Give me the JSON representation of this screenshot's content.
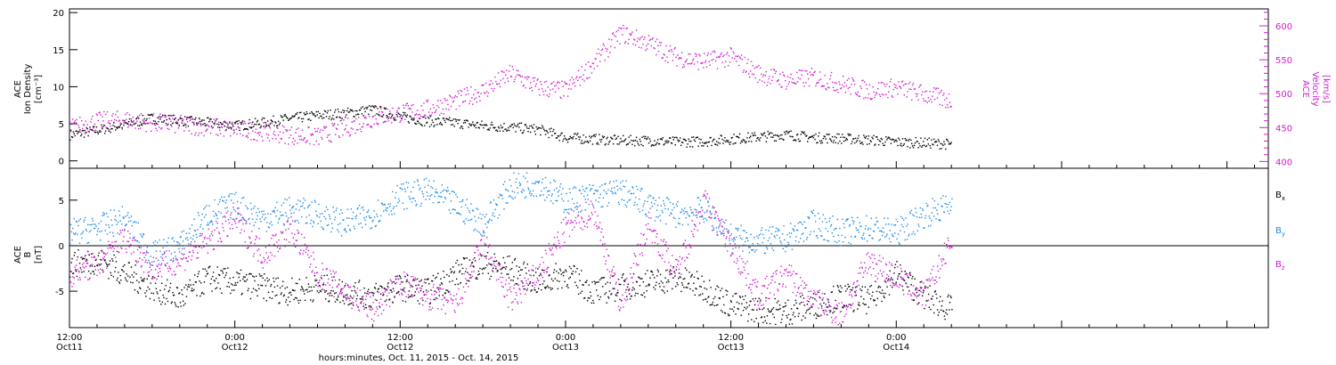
{
  "xaxis": {
    "label": "hours:minutes, Oct. 11, 2015 - Oct. 14, 2015",
    "ticks": [
      {
        "t": 0,
        "time": "12:00",
        "date": "Oct11"
      },
      {
        "t": 12,
        "time": "0:00",
        "date": "Oct12"
      },
      {
        "t": 24,
        "time": "12:00",
        "date": "Oct12"
      },
      {
        "t": 36,
        "time": "0:00",
        "date": "Oct13"
      },
      {
        "t": 48,
        "time": "12:00",
        "date": "Oct13"
      },
      {
        "t": 60,
        "time": "0:00",
        "date": "Oct14"
      }
    ]
  },
  "colors": {
    "black": "#000000",
    "magenta": "#d21bd2",
    "blue": "#1e8ae6"
  },
  "chart_data": [
    {
      "type": "scatter",
      "panel": "top",
      "ylabel_left": [
        "ACE",
        "Ion Density",
        "[cm⁻³]"
      ],
      "ylabel_right": [
        "ACE",
        "Velocity",
        "[km/s]"
      ],
      "ylim_left": [
        -1,
        20.5
      ],
      "yticks_left": [
        0,
        5,
        10,
        15,
        20
      ],
      "ylim_right": [
        390,
        625
      ],
      "yticks_right": [
        400,
        450,
        500,
        550,
        600
      ],
      "x_unit": "hours since Oct11 12:00",
      "series": [
        {
          "axis": "left",
          "color": "#000000",
          "x": [
            0,
            2,
            4,
            6,
            8,
            10,
            12,
            14,
            16,
            18,
            20,
            22,
            24,
            26,
            28,
            30,
            32,
            34,
            36,
            38,
            40,
            42,
            44,
            46,
            48,
            50,
            52,
            54,
            56,
            58,
            60,
            62,
            64
          ],
          "y": [
            3.6,
            4.2,
            5.0,
            5.8,
            5.5,
            5.2,
            4.8,
            5.2,
            5.8,
            6.2,
            6.5,
            7.0,
            6.0,
            5.4,
            5.2,
            4.8,
            4.6,
            4.3,
            3.2,
            3.0,
            2.8,
            2.8,
            2.6,
            2.7,
            3.0,
            3.3,
            3.6,
            3.2,
            3.1,
            2.9,
            2.6,
            2.5,
            2.3
          ]
        },
        {
          "axis": "right",
          "color": "#d21bd2",
          "x": [
            0,
            2,
            4,
            6,
            8,
            10,
            12,
            14,
            16,
            18,
            20,
            22,
            24,
            26,
            28,
            30,
            32,
            34,
            36,
            38,
            40,
            42,
            44,
            46,
            48,
            50,
            52,
            54,
            56,
            58,
            60,
            62,
            64
          ],
          "y": [
            450,
            460,
            462,
            458,
            455,
            452,
            448,
            445,
            440,
            437,
            450,
            465,
            472,
            478,
            490,
            505,
            530,
            510,
            505,
            545,
            590,
            575,
            555,
            548,
            555,
            530,
            520,
            525,
            515,
            505,
            510,
            500,
            490
          ]
        }
      ]
    },
    {
      "type": "scatter",
      "panel": "bottom",
      "ylabel_left": [
        "ACE",
        "B",
        "[nT]"
      ],
      "ylim": [
        -9,
        8.5
      ],
      "yticks": [
        -5,
        0,
        5
      ],
      "x_unit": "hours since Oct11 12:00",
      "legend": [
        {
          "name": "B",
          "sub": "x",
          "color": "#000000"
        },
        {
          "name": "B",
          "sub": "y",
          "color": "#1e8ae6"
        },
        {
          "name": "B",
          "sub": "z",
          "color": "#d21bd2"
        }
      ],
      "series": [
        {
          "name": "Bx",
          "color": "#000000",
          "x": [
            0,
            2,
            4,
            6,
            8,
            10,
            12,
            14,
            16,
            18,
            20,
            22,
            24,
            26,
            28,
            30,
            32,
            34,
            36,
            38,
            40,
            42,
            44,
            46,
            48,
            50,
            52,
            54,
            56,
            58,
            60,
            62,
            64
          ],
          "y": [
            -2.0,
            -1.5,
            -3.0,
            -4.5,
            -5.8,
            -3.5,
            -4.0,
            -4.5,
            -5.0,
            -4.5,
            -5.0,
            -5.5,
            -4.5,
            -5.0,
            -3.0,
            -2.0,
            -2.5,
            -4.0,
            -3.0,
            -5.0,
            -4.5,
            -4.0,
            -3.5,
            -4.5,
            -6.5,
            -7.0,
            -7.2,
            -6.5,
            -5.5,
            -6.0,
            -3.0,
            -5.5,
            -7.0
          ]
        },
        {
          "name": "By",
          "color": "#1e8ae6",
          "x": [
            0,
            2,
            4,
            6,
            8,
            10,
            12,
            14,
            16,
            18,
            20,
            22,
            24,
            26,
            28,
            30,
            32,
            34,
            36,
            38,
            40,
            42,
            44,
            46,
            48,
            50,
            52,
            54,
            56,
            58,
            60,
            62,
            64
          ],
          "y": [
            1.5,
            2.0,
            3.0,
            -1.0,
            0.0,
            3.5,
            4.5,
            3.0,
            4.0,
            3.5,
            2.5,
            3.5,
            5.5,
            6.0,
            4.5,
            2.5,
            6.5,
            7.0,
            5.0,
            5.5,
            6.0,
            4.5,
            3.5,
            4.0,
            1.0,
            0.5,
            0.8,
            2.5,
            1.5,
            2.0,
            1.5,
            3.5,
            4.5
          ]
        },
        {
          "name": "Bz",
          "color": "#d21bd2",
          "x": [
            0,
            2,
            4,
            6,
            8,
            10,
            12,
            14,
            16,
            18,
            20,
            22,
            24,
            26,
            28,
            30,
            32,
            34,
            36,
            38,
            40,
            42,
            44,
            46,
            48,
            50,
            52,
            54,
            56,
            58,
            60,
            62,
            64
          ],
          "y": [
            -3.0,
            -2.0,
            1.0,
            -2.5,
            -1.5,
            0.5,
            3.0,
            -1.0,
            2.0,
            -3.0,
            -5.0,
            -7.0,
            -4.0,
            -5.5,
            -6.5,
            0.5,
            -6.0,
            -3.0,
            2.0,
            4.0,
            -6.5,
            2.5,
            -3.0,
            5.0,
            0.0,
            -5.5,
            -3.0,
            -6.0,
            -7.5,
            -1.5,
            -3.5,
            -5.5,
            0.5
          ]
        }
      ]
    }
  ]
}
